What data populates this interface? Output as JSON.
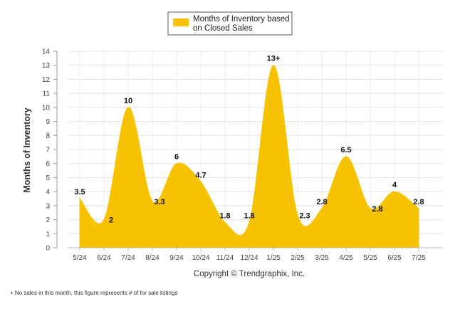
{
  "chart_data": {
    "type": "area",
    "categories": [
      "5/24",
      "6/24",
      "7/24",
      "8/24",
      "9/24",
      "10/24",
      "11/24",
      "12/24",
      "1/25",
      "2/25",
      "3/25",
      "4/25",
      "5/25",
      "6/25",
      "7/25"
    ],
    "series": [
      {
        "name": "Months of Inventory based on Closed Sales",
        "values": [
          3.5,
          2,
          10,
          3.3,
          6,
          4.7,
          1.8,
          1.8,
          13,
          2.3,
          2.8,
          6.5,
          2.8,
          4,
          2.8
        ],
        "labels": [
          "3.5",
          "2",
          "10",
          "3.3",
          "6",
          "4.7",
          "1.8",
          "1.8",
          "13+",
          "2.3",
          "2.8",
          "6.5",
          "2.8",
          "4",
          "2.8"
        ],
        "color": "#F7C200"
      }
    ],
    "legend_lines": [
      "Months of Inventory based",
      "on Closed Sales"
    ],
    "legend_position": "top-center",
    "ylabel": "Months of Inventory",
    "ylim": [
      0,
      14
    ],
    "yticks": [
      0,
      1,
      2,
      3,
      4,
      5,
      6,
      7,
      8,
      9,
      10,
      11,
      12,
      13,
      14
    ],
    "grid": true,
    "copyright": "Copyright © Trendgraphix, Inc.",
    "footnote": "+  No sales in this month, this figure represents # of for sale listings"
  }
}
